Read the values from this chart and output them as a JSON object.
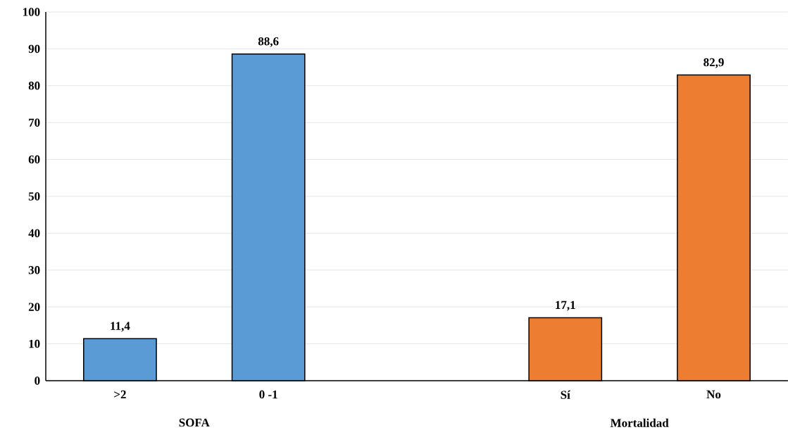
{
  "chart_data": {
    "type": "bar",
    "categories": [
      ">2",
      "0 -1",
      null,
      "Sí",
      "No"
    ],
    "values": [
      11.4,
      88.6,
      null,
      17.1,
      82.9
    ],
    "value_labels": [
      "11,4",
      "88,6",
      null,
      "17,1",
      "82,9"
    ],
    "colors": [
      "#5b9bd5",
      "#5b9bd5",
      null,
      "#ed7d31",
      "#ed7d31"
    ],
    "ylim": [
      0,
      100
    ],
    "yticks": [
      0,
      10,
      20,
      30,
      40,
      50,
      60,
      70,
      80,
      90,
      100
    ],
    "grid": "y",
    "annotations": [
      "SOFA",
      "Mortalidad"
    ]
  }
}
